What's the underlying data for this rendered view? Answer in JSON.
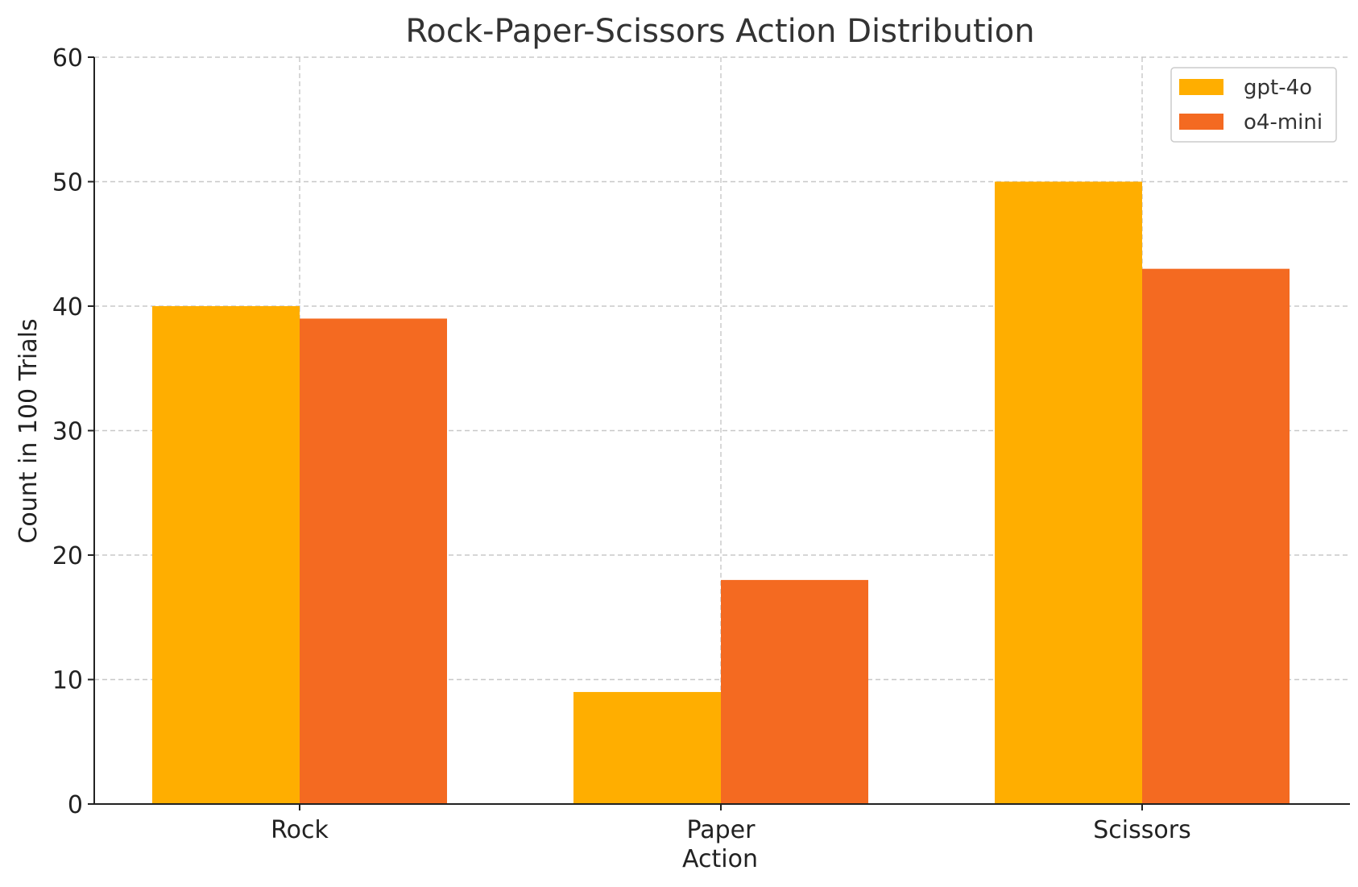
{
  "chart_data": {
    "type": "bar",
    "title": "Rock-Paper-Scissors Action Distribution",
    "xlabel": "Action",
    "ylabel": "Count in 100 Trials",
    "categories": [
      "Rock",
      "Paper",
      "Scissors"
    ],
    "series": [
      {
        "name": "gpt-4o",
        "color": "#FFAE00",
        "values": [
          40,
          9,
          50
        ]
      },
      {
        "name": "o4-mini",
        "color": "#F46A21",
        "values": [
          39,
          18,
          43
        ]
      }
    ],
    "ylim": [
      0,
      60
    ],
    "yticks": [
      0,
      10,
      20,
      30,
      40,
      50,
      60
    ],
    "grid": true,
    "legend_position": "top-right"
  }
}
